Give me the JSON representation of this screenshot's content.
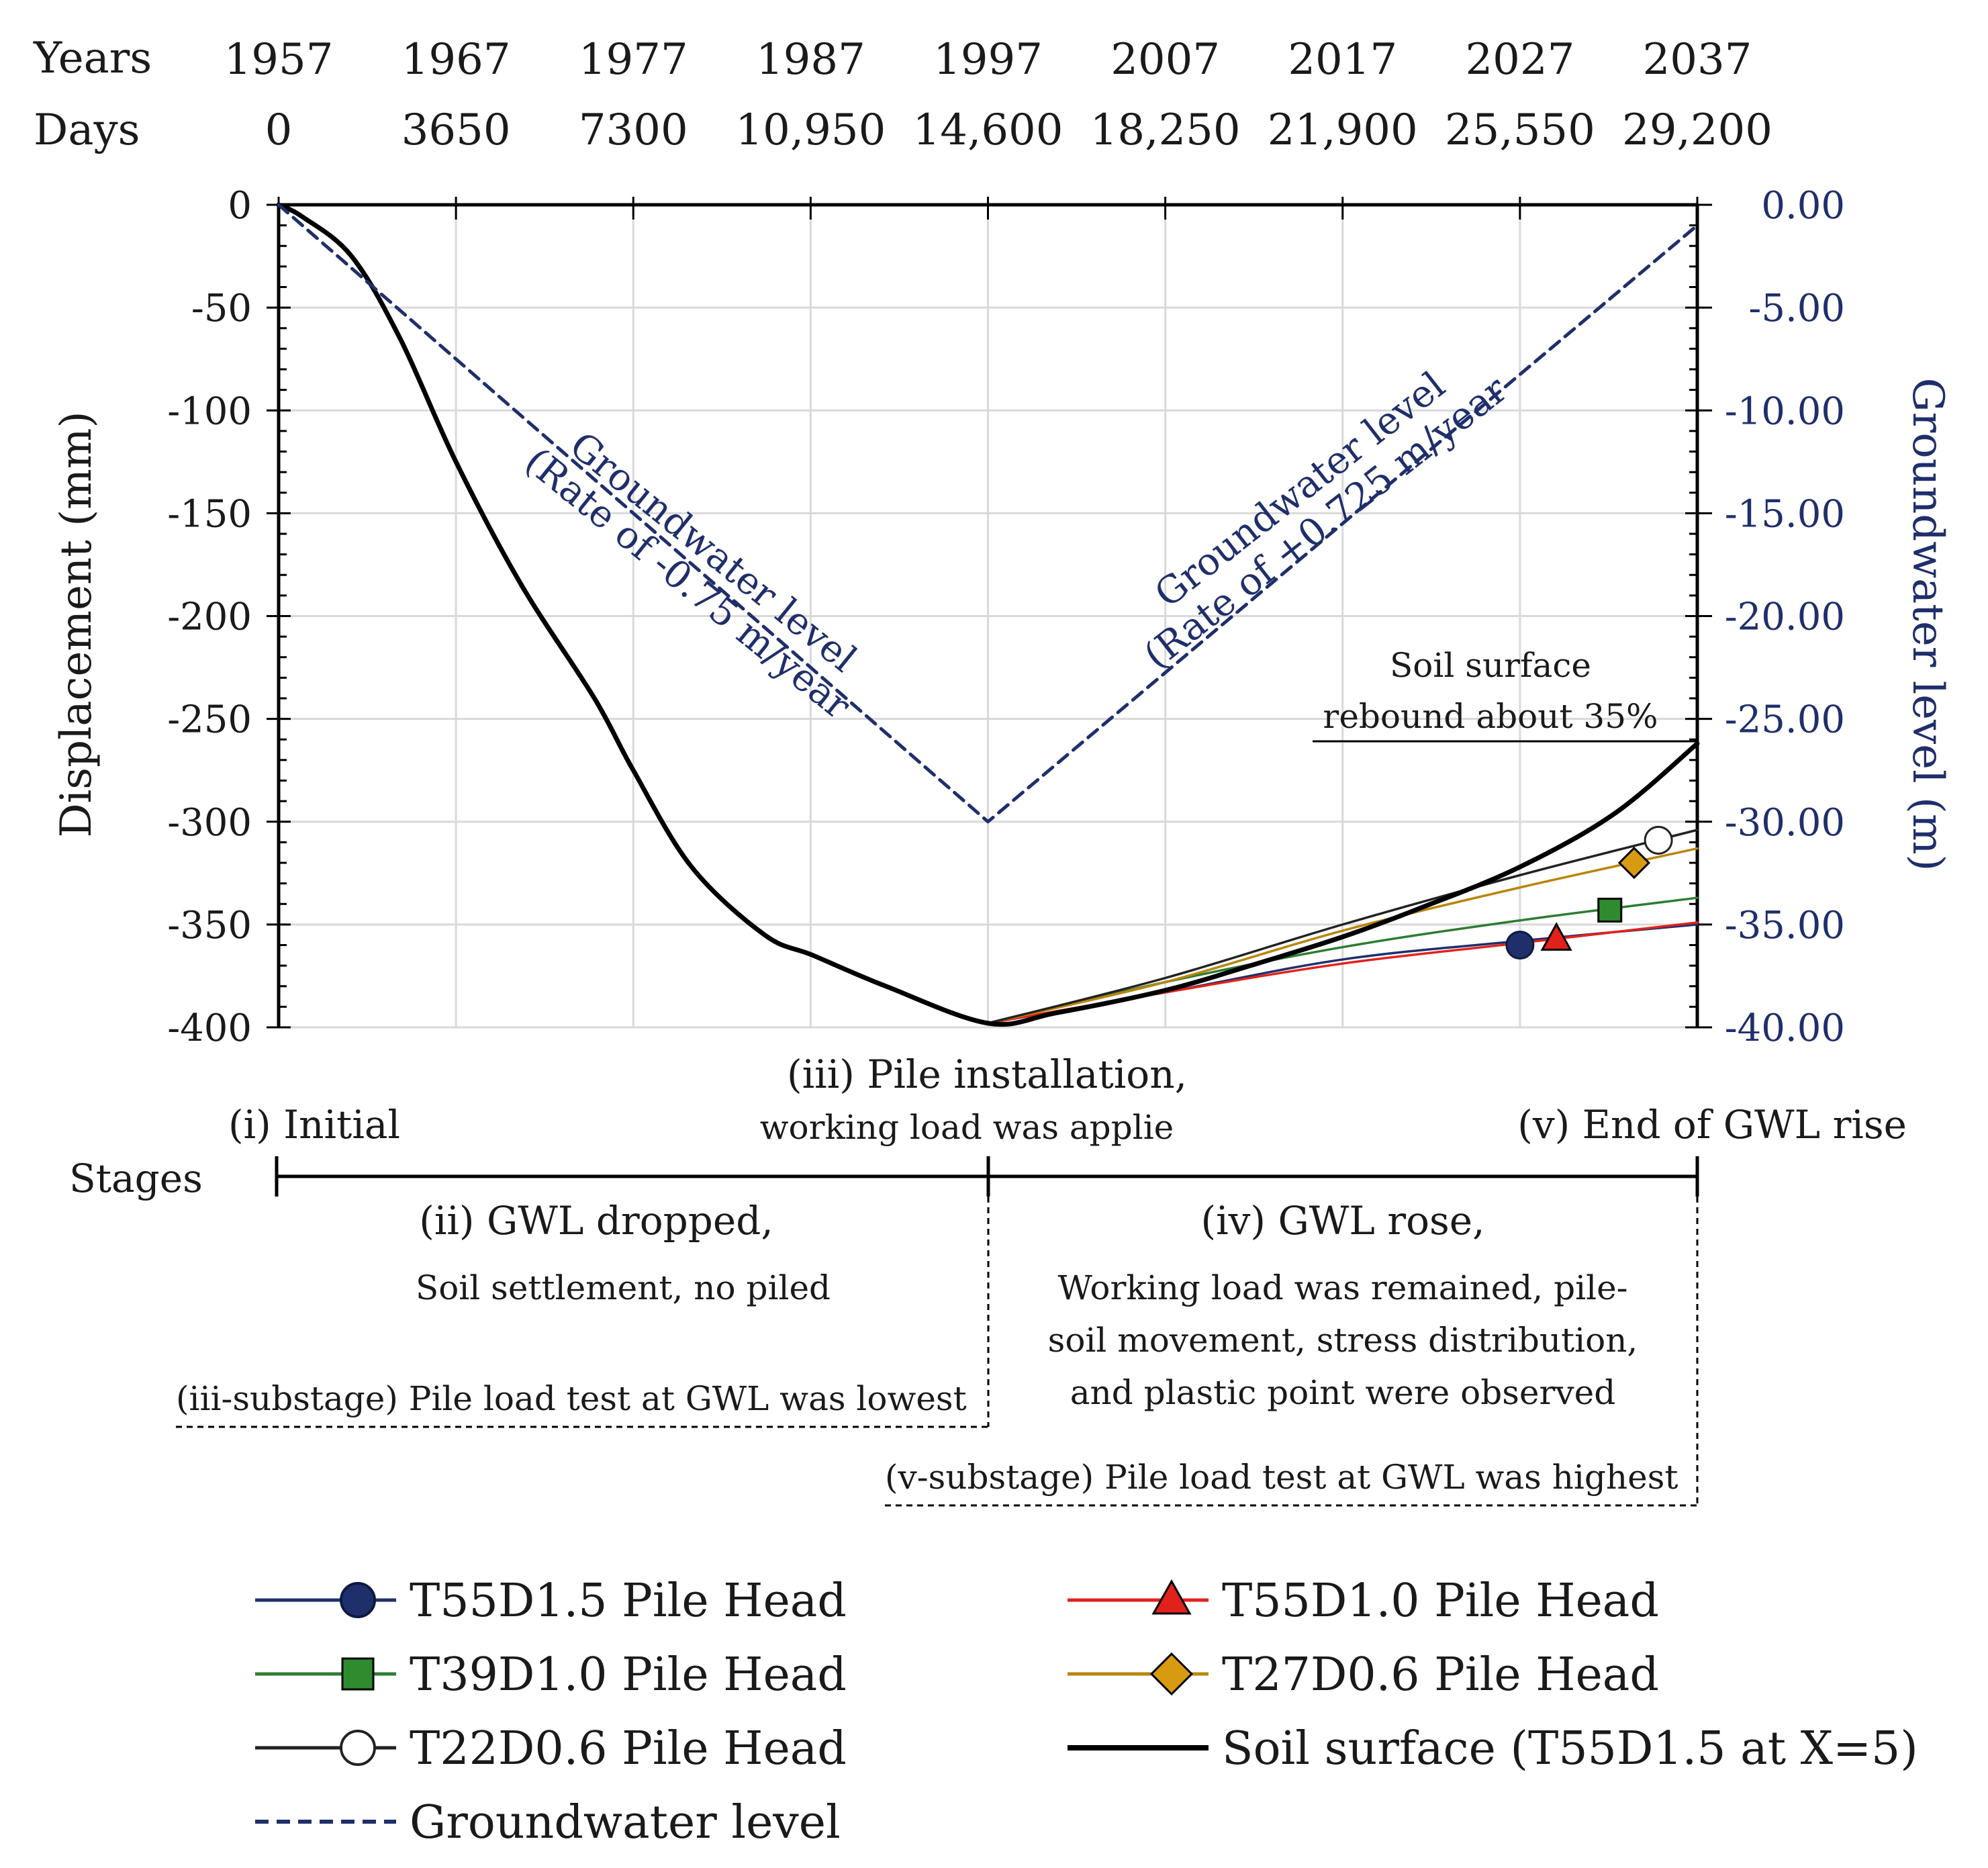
{
  "header": {
    "years_label": "Years",
    "days_label": "Days",
    "years": [
      "1957",
      "1967",
      "1977",
      "1987",
      "1997",
      "2007",
      "2017",
      "2027",
      "2037"
    ],
    "days": [
      "0",
      "3650",
      "7300",
      "10,950",
      "14,600",
      "18,250",
      "21,900",
      "25,550",
      "29,200"
    ]
  },
  "chart_data": {
    "type": "line",
    "xlabel": "Days",
    "ylabel": "Displacement (mm)",
    "y2label": "Groundwater level (m)",
    "xlim": [
      0,
      29200
    ],
    "ylim": [
      -400,
      0
    ],
    "y2lim": [
      -40,
      0
    ],
    "grid": true,
    "left_ticks": [
      "0",
      "-50",
      "-100",
      "-150",
      "-200",
      "-250",
      "-300",
      "-350",
      "-400"
    ],
    "right_ticks": [
      "0.00",
      "-5.00",
      "-10.00",
      "-15.00",
      "-20.00",
      "-25.00",
      "-30.00",
      "-35.00",
      "-40.00"
    ],
    "series": [
      {
        "name": "T55D1.5 Pile Head",
        "color": "#1f2f6b",
        "marker": "circle",
        "marker_fill": "#1f2f6b",
        "x": [
          14600,
          18250,
          21900,
          25550,
          29200
        ],
        "y": [
          -398,
          -383,
          -367,
          -358,
          -350
        ],
        "marker_at": [
          25550,
          -360
        ]
      },
      {
        "name": "T55D1.0 Pile Head",
        "color": "#e3211c",
        "marker": "triangle",
        "marker_fill": "#e3211c",
        "x": [
          14600,
          18250,
          21900,
          25550,
          29200
        ],
        "y": [
          -398,
          -383,
          -369,
          -359,
          -349
        ],
        "marker_at": [
          26300,
          -357
        ]
      },
      {
        "name": "T39D1.0 Pile Head",
        "color": "#2e7d32",
        "marker": "square",
        "marker_fill": "#2e8b2e",
        "x": [
          14600,
          18250,
          21900,
          25550,
          29200
        ],
        "y": [
          -398,
          -378,
          -361,
          -348,
          -337
        ],
        "marker_at": [
          27400,
          -343
        ]
      },
      {
        "name": "T27D0.6 Pile Head",
        "color": "#b8860b",
        "marker": "diamond",
        "marker_fill": "#d89a10",
        "x": [
          14600,
          18250,
          21900,
          25550,
          29200
        ],
        "y": [
          -398,
          -378,
          -353,
          -332,
          -313
        ],
        "marker_at": [
          27900,
          -320
        ]
      },
      {
        "name": "T22D0.6 Pile Head",
        "color": "#222222",
        "marker": "circle-open",
        "marker_fill": "#ffffff",
        "x": [
          14600,
          18250,
          21900,
          25550,
          29200
        ],
        "y": [
          -398,
          -376,
          -350,
          -326,
          -304
        ],
        "marker_at": [
          28400,
          -309
        ]
      },
      {
        "name": "Soil surface (T55D1.5 at X=5)",
        "color": "#000000",
        "marker": "none",
        "x": [
          0,
          500,
          1500,
          2500,
          3650,
          5000,
          6500,
          7300,
          8500,
          10000,
          11000,
          12500,
          14600,
          16000,
          18250,
          20000,
          21900,
          23500,
          25550,
          27500,
          29200
        ],
        "y": [
          0,
          -6,
          -25,
          -65,
          -125,
          -185,
          -240,
          -275,
          -322,
          -355,
          -365,
          -380,
          -398,
          -393,
          -382,
          -370,
          -356,
          -342,
          -322,
          -296,
          -262
        ]
      },
      {
        "name": "Groundwater level",
        "color": "#1f2f6b",
        "dashed": true,
        "axis": "right",
        "marker": "none",
        "x": [
          0,
          14600,
          29200
        ],
        "y": [
          0,
          -30,
          -1
        ]
      }
    ],
    "annotations": {
      "gw_drop_line1": "Groundwater level",
      "gw_drop_line2": "(Rate of -0.75 m/year",
      "gw_rise_line1": "Groundwater level",
      "gw_rise_line2": "(Rate of +0.725 m/year",
      "rebound_line1": "Soil surface",
      "rebound_line2": "rebound about 35%"
    }
  },
  "stages": {
    "label": "Stages",
    "i": "(i) Initial",
    "iii_title": "(iii) Pile installation,",
    "iii_sub": "working load was applie",
    "v": "(v) End of GWL rise",
    "ii_title": "(ii) GWL dropped,",
    "ii_sub": "Soil settlement, no piled",
    "iii_substage": "(iii-substage) Pile load test at GWL was lowest",
    "iv_title": "(iv) GWL rose,",
    "iv_line1": "Working load was remained, pile-",
    "iv_line2": "soil movement, stress distribution,",
    "iv_line3": "and plastic point were observed",
    "v_substage": "(v-substage) Pile load test at GWL was highest"
  },
  "legend": {
    "t55d15": "T55D1.5 Pile Head",
    "t55d10": "T55D1.0 Pile Head",
    "t39d10": "T39D1.0 Pile Head",
    "t27d06": "T27D0.6 Pile Head",
    "t22d06": "T22D0.6 Pile Head",
    "soil": "Soil surface (T55D1.5 at X=5)",
    "gwl": "Groundwater level"
  }
}
